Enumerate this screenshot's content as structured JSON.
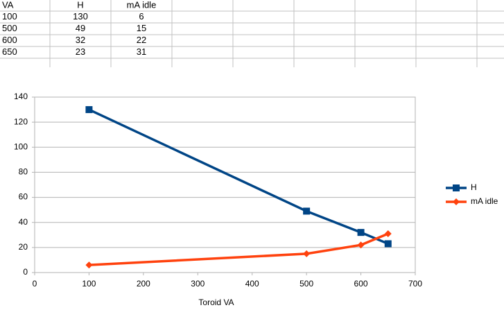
{
  "table": {
    "header": [
      "VA",
      "H",
      "mA idle"
    ],
    "rows": [
      [
        100,
        130,
        6
      ],
      [
        500,
        49,
        15
      ],
      [
        600,
        32,
        22
      ],
      [
        650,
        23,
        31
      ]
    ]
  },
  "chart_data": {
    "type": "line",
    "x_label": "Toroid VA",
    "x": [
      100,
      500,
      600,
      650
    ],
    "series": [
      {
        "name": "H",
        "color": "#004586",
        "marker": "square",
        "values": [
          130,
          49,
          32,
          23
        ]
      },
      {
        "name": "mA idle",
        "color": "#ff420e",
        "marker": "diamond",
        "values": [
          6,
          15,
          22,
          31
        ]
      }
    ],
    "xlim": [
      0,
      700
    ],
    "xticks": [
      0,
      100,
      200,
      300,
      400,
      500,
      600,
      700
    ],
    "ylim": [
      0,
      140
    ],
    "yticks": [
      0,
      20,
      40,
      60,
      80,
      100,
      120,
      140
    ],
    "grid": true,
    "legend": "right"
  }
}
